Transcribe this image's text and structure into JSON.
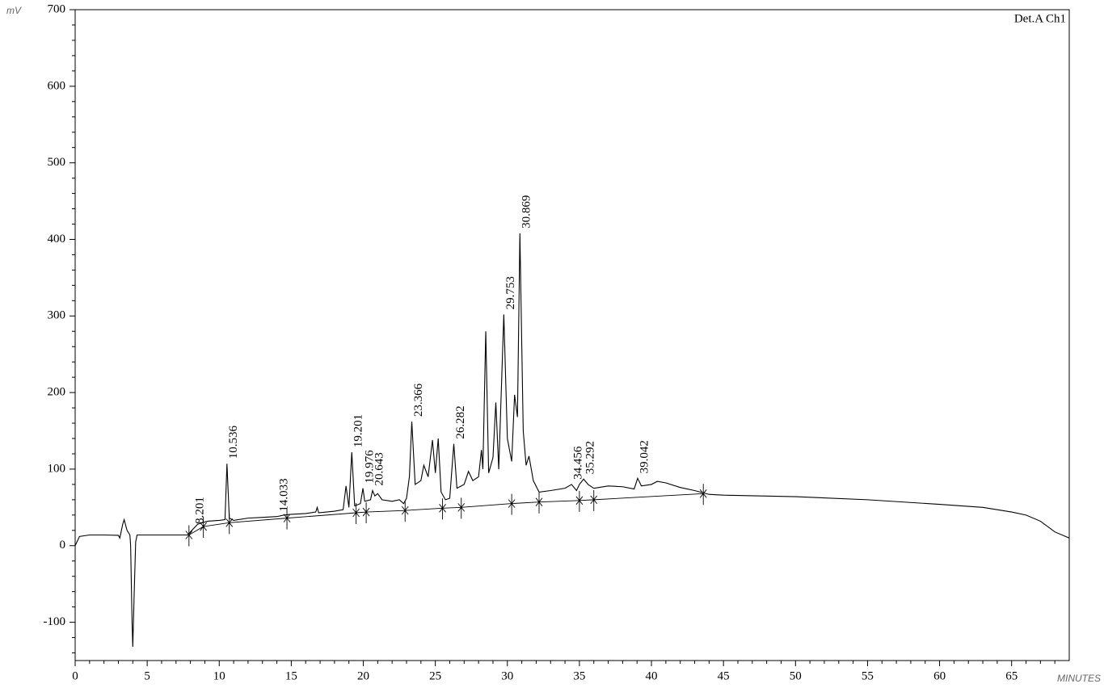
{
  "chart_data": {
    "type": "line",
    "y_label": "mV",
    "x_label": "MINUTES",
    "channel": "Det.A Ch1",
    "color": "#000000",
    "x": [
      0,
      0.3,
      1,
      2,
      3,
      3.1,
      3.3,
      3.4,
      3.6,
      3.8,
      3.85,
      3.95,
      4.0,
      4.1,
      4.2,
      4.3,
      5,
      7,
      7.8,
      8.2,
      8.5,
      8.8,
      9.2,
      10,
      10.4,
      10.536,
      10.7,
      11,
      12,
      13,
      14,
      14.5,
      15,
      16,
      16.7,
      16.8,
      16.9,
      18,
      18.6,
      18.8,
      19.0,
      19.201,
      19.4,
      19.8,
      19.976,
      20.1,
      20.5,
      20.643,
      20.8,
      21,
      21.3,
      22,
      22.5,
      22.8,
      23,
      23.2,
      23.366,
      23.6,
      24,
      24.2,
      24.5,
      24.8,
      25,
      25.2,
      25.4,
      25.7,
      26,
      26.282,
      26.5,
      27,
      27.3,
      27.6,
      28,
      28.2,
      28.3,
      28.5,
      28.7,
      29.0,
      29.2,
      29.4,
      29.753,
      30.0,
      30.3,
      30.5,
      30.7,
      30.869,
      31.1,
      31.3,
      31.5,
      31.8,
      32.2,
      33,
      34,
      34.456,
      34.8,
      35,
      35.292,
      35.6,
      36,
      37,
      38,
      38.8,
      39.042,
      39.3,
      40,
      40.4,
      41,
      42,
      43,
      44,
      45,
      50,
      55,
      60,
      63,
      65,
      66,
      67,
      68,
      69
    ],
    "values": [
      0,
      12,
      14,
      14,
      13.5,
      10,
      28,
      34,
      20,
      14,
      0,
      -100,
      -132,
      -60,
      5,
      14,
      14,
      14,
      14,
      22,
      28,
      30,
      32,
      33,
      34,
      107,
      36,
      33,
      36,
      37,
      38,
      40,
      41,
      42,
      44,
      50,
      43,
      45,
      47,
      78,
      50,
      122,
      52,
      55,
      75,
      58,
      60,
      72,
      65,
      68,
      60,
      58,
      60,
      55,
      62,
      90,
      162,
      80,
      85,
      105,
      90,
      138,
      95,
      140,
      70,
      60,
      62,
      133,
      75,
      80,
      97,
      85,
      90,
      125,
      100,
      280,
      95,
      115,
      187,
      100,
      302,
      140,
      110,
      197,
      168,
      408,
      150,
      105,
      117,
      85,
      70,
      72,
      75,
      80,
      72,
      80,
      87,
      80,
      75,
      78,
      77,
      74,
      88,
      78,
      80,
      84,
      82,
      76,
      72,
      67,
      66,
      64,
      60,
      54,
      50,
      44,
      40,
      32,
      18,
      10
    ],
    "baseline": {
      "x": [
        7.9,
        8.9,
        10.7,
        14.7,
        19.5,
        20.2,
        22.9,
        25.5,
        26.8,
        30.3,
        32.2,
        35.0,
        36.0,
        43.6
      ],
      "values": [
        14,
        25,
        30,
        36,
        43,
        44,
        46,
        49,
        50,
        55,
        57,
        59,
        60,
        68
      ]
    },
    "peak_labels": [
      8.201,
      10.536,
      14.033,
      19.201,
      19.976,
      20.643,
      23.366,
      26.282,
      29.753,
      30.869,
      34.456,
      35.292,
      39.042
    ],
    "xlim": [
      0,
      69
    ],
    "ylim": [
      -150,
      700
    ],
    "xticks": [
      0,
      5,
      10,
      15,
      20,
      25,
      30,
      35,
      40,
      45,
      50,
      55,
      60,
      65
    ],
    "yticks": [
      -100,
      0,
      100,
      200,
      300,
      400,
      500,
      600,
      700
    ]
  }
}
